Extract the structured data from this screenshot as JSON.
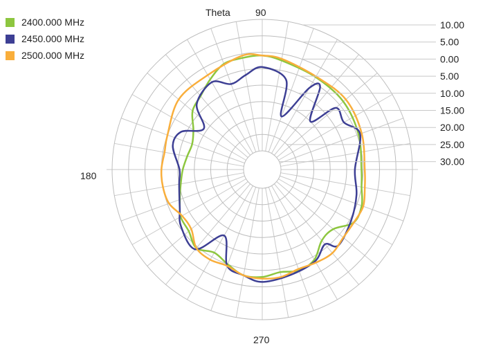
{
  "chart_data": {
    "type": "polar-line",
    "angle_label": "Theta",
    "angle_ticks": [
      "90",
      "180",
      "270"
    ],
    "radial_ticks": [
      "10.00",
      "5.00",
      "0.00",
      "5.00",
      "10.00",
      "15.00",
      "20.00",
      "25.00",
      "30.00"
    ],
    "radial_axis_note": "rings from outer (10.00) to inner (30.00)",
    "grid": true,
    "legend_position": "top-left",
    "series": [
      {
        "name": "2400.000 MHz",
        "color": "#8dc63f",
        "points": [
          [
            0,
            5.5
          ],
          [
            20,
            4.5
          ],
          [
            40,
            3.5
          ],
          [
            60,
            3.2
          ],
          [
            80,
            2.0
          ],
          [
            90,
            1.0
          ],
          [
            100,
            1.2
          ],
          [
            110,
            1.5
          ],
          [
            120,
            4.0
          ],
          [
            130,
            6.5
          ],
          [
            140,
            8.0
          ],
          [
            150,
            11.5
          ],
          [
            160,
            13.0
          ],
          [
            170,
            12.5
          ],
          [
            180,
            11.5
          ],
          [
            190,
            10.5
          ],
          [
            200,
            9.0
          ],
          [
            210,
            7.0
          ],
          [
            220,
            6.5
          ],
          [
            230,
            4.5
          ],
          [
            240,
            6.5
          ],
          [
            250,
            5.0
          ],
          [
            260,
            3.0
          ],
          [
            270,
            3.0
          ],
          [
            280,
            4.0
          ],
          [
            290,
            3.0
          ],
          [
            300,
            4.0
          ],
          [
            310,
            7.5
          ],
          [
            320,
            7.5
          ],
          [
            330,
            3.5
          ],
          [
            340,
            3.5
          ],
          [
            350,
            5.0
          ]
        ]
      },
      {
        "name": "2450.000 MHz",
        "color": "#3d3f94",
        "points": [
          [
            0,
            7.5
          ],
          [
            20,
            4.0
          ],
          [
            30,
            7.0
          ],
          [
            40,
            6.5
          ],
          [
            45,
            15.0
          ],
          [
            55,
            5.0
          ],
          [
            60,
            7.0
          ],
          [
            70,
            18.5
          ],
          [
            75,
            7.5
          ],
          [
            90,
            4.5
          ],
          [
            100,
            6.5
          ],
          [
            110,
            8.0
          ],
          [
            120,
            5.0
          ],
          [
            135,
            7.5
          ],
          [
            145,
            14.0
          ],
          [
            155,
            8.5
          ],
          [
            165,
            7.5
          ],
          [
            180,
            10.5
          ],
          [
            190,
            10.0
          ],
          [
            205,
            8.0
          ],
          [
            215,
            5.5
          ],
          [
            230,
            4.0
          ],
          [
            240,
            12.5
          ],
          [
            250,
            4.5
          ],
          [
            260,
            3.0
          ],
          [
            270,
            1.5
          ],
          [
            285,
            2.5
          ],
          [
            300,
            3.5
          ],
          [
            310,
            6.0
          ],
          [
            315,
            3.0
          ],
          [
            330,
            4.5
          ],
          [
            345,
            6.0
          ]
        ]
      },
      {
        "name": "2500.000 MHz",
        "color": "#f9ae3b",
        "points": [
          [
            0,
            4.5
          ],
          [
            20,
            3.5
          ],
          [
            40,
            2.5
          ],
          [
            60,
            3.0
          ],
          [
            80,
            1.5
          ],
          [
            90,
            1.0
          ],
          [
            100,
            0.5
          ],
          [
            120,
            2.5
          ],
          [
            140,
            2.5
          ],
          [
            160,
            5.0
          ],
          [
            170,
            5.5
          ],
          [
            180,
            5.0
          ],
          [
            190,
            5.0
          ],
          [
            200,
            5.5
          ],
          [
            210,
            7.5
          ],
          [
            220,
            7.5
          ],
          [
            230,
            4.5
          ],
          [
            240,
            4.0
          ],
          [
            250,
            4.5
          ],
          [
            260,
            3.0
          ],
          [
            270,
            2.5
          ],
          [
            280,
            2.5
          ],
          [
            290,
            3.5
          ],
          [
            300,
            3.0
          ],
          [
            310,
            2.5
          ],
          [
            320,
            3.5
          ],
          [
            330,
            3.5
          ],
          [
            340,
            3.0
          ],
          [
            350,
            4.0
          ]
        ]
      }
    ]
  }
}
